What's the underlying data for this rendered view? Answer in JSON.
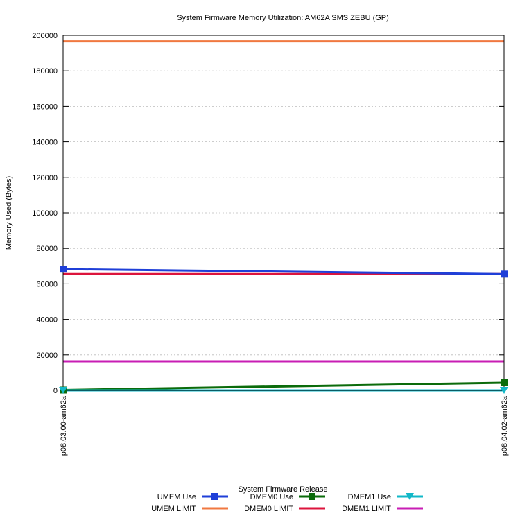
{
  "chart_data": {
    "type": "line",
    "title": "System Firmware Memory Utilization: AM62A SMS ZEBU (GP)",
    "xlabel": "System Firmware Release",
    "ylabel": "Memory Used (Bytes)",
    "categories": [
      "p08.03.00-am62a",
      "p08.04.02-am62a"
    ],
    "ylim": [
      0,
      200000
    ],
    "yticks": [
      0,
      20000,
      40000,
      60000,
      80000,
      100000,
      120000,
      140000,
      160000,
      180000,
      200000
    ],
    "grid": true,
    "legend_position": "bottom",
    "series": [
      {
        "name": "UMEM Use",
        "values": [
          68300,
          65500
        ],
        "color": "#1f3fd8",
        "marker": "square"
      },
      {
        "name": "DMEM0 Use",
        "values": [
          200,
          4300
        ],
        "color": "#0b6b0b",
        "marker": "square"
      },
      {
        "name": "DMEM1 Use",
        "values": [
          0,
          0
        ],
        "color": "#12b8c8",
        "marker": "triangle-down"
      },
      {
        "name": "UMEM LIMIT",
        "values": [
          196608,
          196608
        ],
        "color": "#f07840",
        "marker": "none"
      },
      {
        "name": "DMEM0 LIMIT",
        "values": [
          65536,
          65536
        ],
        "color": "#dc143c",
        "marker": "none"
      },
      {
        "name": "DMEM1 LIMIT",
        "values": [
          16384,
          16384
        ],
        "color": "#c81eb4",
        "marker": "none"
      }
    ]
  }
}
